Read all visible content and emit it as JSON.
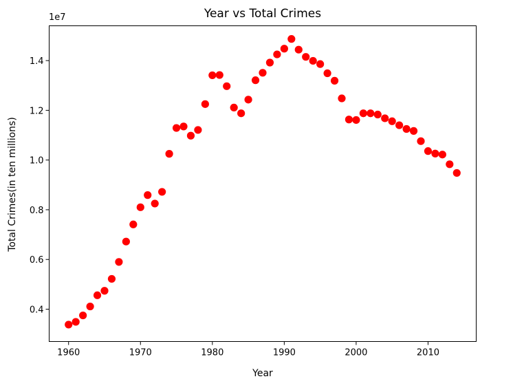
{
  "chart_data": {
    "type": "scatter",
    "title": "Year vs Total Crimes",
    "xlabel": "Year",
    "ylabel": "Total Crimes(in ten millions)",
    "offset_text": "1e7",
    "xlim": [
      1957.3,
      2016.7
    ],
    "ylim": [
      2700000,
      15400000
    ],
    "xticks": [
      1960,
      1970,
      1980,
      1990,
      2000,
      2010
    ],
    "xtick_labels": [
      "1960",
      "1970",
      "1980",
      "1990",
      "2000",
      "2010"
    ],
    "yticks": [
      4000000,
      6000000,
      8000000,
      10000000,
      12000000,
      14000000
    ],
    "ytick_labels": [
      "0.4",
      "0.6",
      "0.8",
      "1.0",
      "1.2",
      "1.4"
    ],
    "grid": false,
    "marker_color": "#ff0000",
    "x": [
      1960,
      1961,
      1962,
      1963,
      1964,
      1965,
      1966,
      1967,
      1968,
      1969,
      1970,
      1971,
      1972,
      1973,
      1974,
      1975,
      1976,
      1977,
      1978,
      1979,
      1980,
      1981,
      1982,
      1983,
      1984,
      1985,
      1986,
      1987,
      1988,
      1989,
      1990,
      1991,
      1992,
      1993,
      1994,
      1995,
      1996,
      1997,
      1998,
      1999,
      2000,
      2001,
      2002,
      2003,
      2004,
      2005,
      2006,
      2007,
      2008,
      2009,
      2010,
      2011,
      2012,
      2013,
      2014
    ],
    "y": [
      3380000,
      3490000,
      3750000,
      4110000,
      4560000,
      4740000,
      5220000,
      5900000,
      6720000,
      7410000,
      8100000,
      8590000,
      8250000,
      8720000,
      10250000,
      11290000,
      11350000,
      10980000,
      11210000,
      12250000,
      13410000,
      13420000,
      12970000,
      12110000,
      11880000,
      12430000,
      13210000,
      13510000,
      13920000,
      14250000,
      14480000,
      14870000,
      14440000,
      14150000,
      13990000,
      13860000,
      13490000,
      13190000,
      12480000,
      11630000,
      11610000,
      11880000,
      11880000,
      11830000,
      11680000,
      11560000,
      11400000,
      11250000,
      11170000,
      10760000,
      10360000,
      10260000,
      10220000,
      9830000,
      9480000
    ]
  }
}
